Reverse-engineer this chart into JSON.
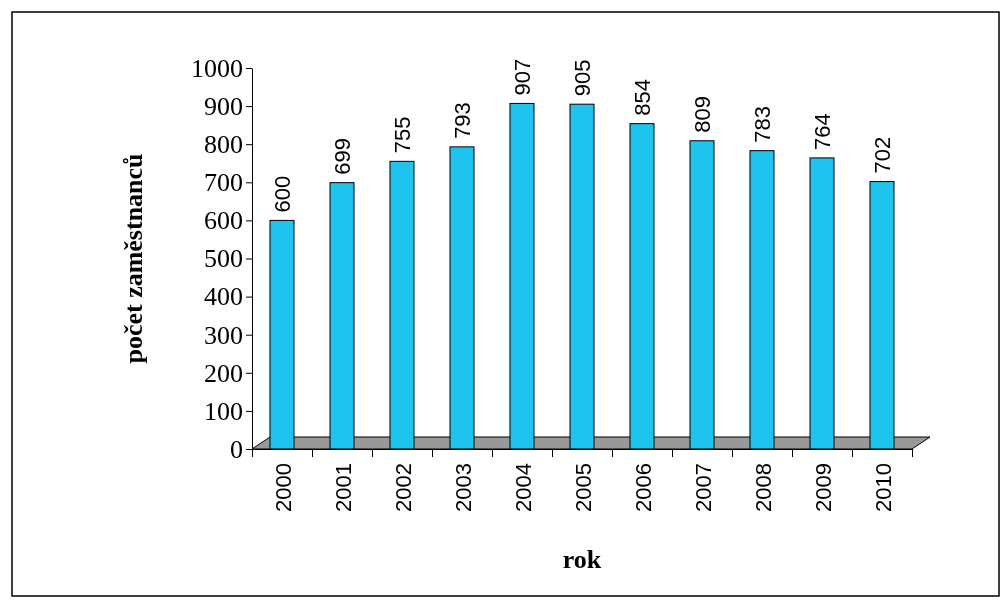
{
  "chart_data": {
    "type": "bar",
    "xlabel": "rok",
    "ylabel": "počet zaměstnanců",
    "categories": [
      "2000",
      "2001",
      "2002",
      "2003",
      "2004",
      "2005",
      "2006",
      "2007",
      "2008",
      "2009",
      "2010"
    ],
    "values": [
      600,
      699,
      755,
      793,
      907,
      905,
      854,
      809,
      783,
      764,
      702
    ],
    "color": "#1ec3ee",
    "ylim": [
      0,
      1000
    ],
    "yticks": [
      0,
      100,
      200,
      300,
      400,
      500,
      600,
      700,
      800,
      900,
      1000
    ],
    "grid": false,
    "data_labels": true
  }
}
